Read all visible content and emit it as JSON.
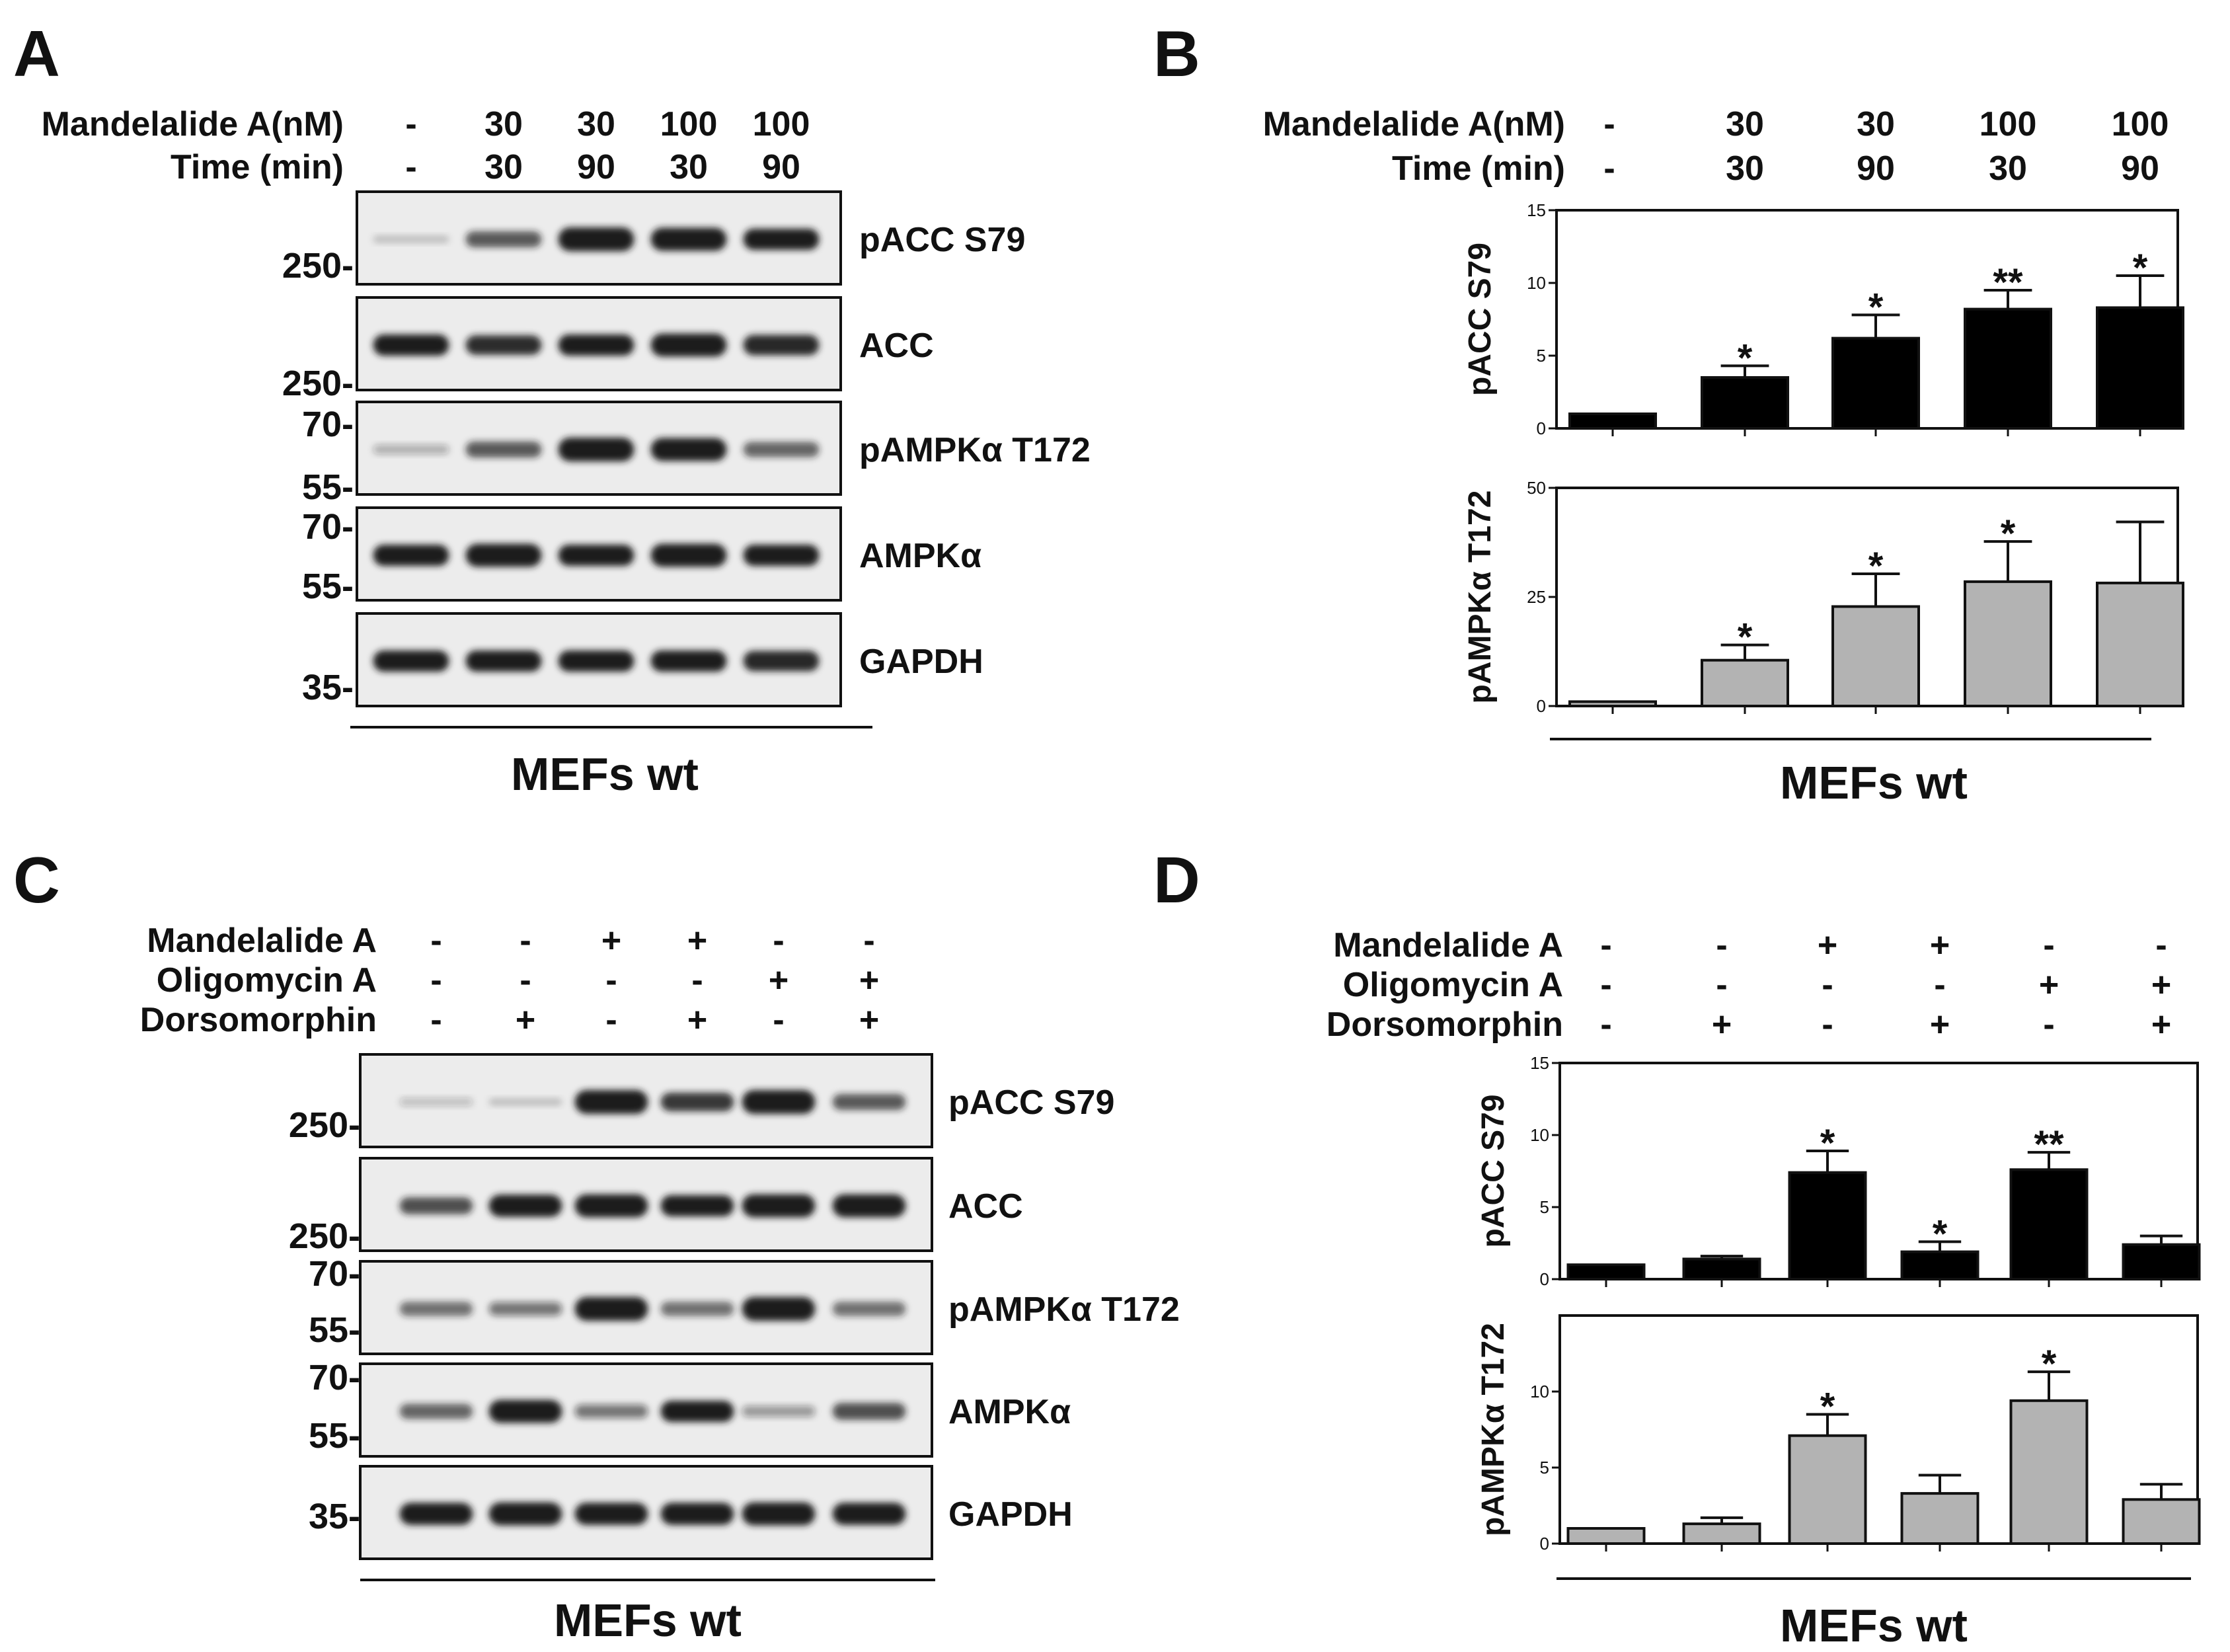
{
  "panels": {
    "A": {
      "letter": "A",
      "conditions": {
        "rows": [
          {
            "label": "Mandelalide A(nM)",
            "values": [
              "-",
              "30",
              "30",
              "100",
              "100"
            ]
          },
          {
            "label": "Time (min)",
            "values": [
              "-",
              "30",
              "90",
              "30",
              "90"
            ]
          }
        ]
      },
      "markers": [
        "250-",
        "250-",
        "70-",
        "55-",
        "70-",
        "55-",
        "35-"
      ],
      "bands": [
        "pACC S79",
        "ACC",
        "pAMPKα  T172",
        "AMPKα",
        "GAPDH"
      ],
      "cell_label": "MEFs wt"
    },
    "B": {
      "letter": "B",
      "conditions": {
        "rows": [
          {
            "label": "Mandelalide A(nM)",
            "values": [
              "-",
              "30",
              "30",
              "100",
              "100"
            ]
          },
          {
            "label": "Time (min)",
            "values": [
              "-",
              "30",
              "90",
              "30",
              "90"
            ]
          }
        ]
      },
      "cell_label": "MEFs wt"
    },
    "C": {
      "letter": "C",
      "conditions": {
        "rows": [
          {
            "label": "Mandelalide A",
            "values": [
              "-",
              "-",
              "+",
              "+",
              "-",
              "-"
            ]
          },
          {
            "label": "Oligomycin A",
            "values": [
              "-",
              "-",
              "-",
              "-",
              "+",
              "+"
            ]
          },
          {
            "label": "Dorsomorphin",
            "values": [
              "-",
              "+",
              "-",
              "+",
              "-",
              "+"
            ]
          }
        ]
      },
      "markers": [
        "250-",
        "250-",
        "70-",
        "55-",
        "70-",
        "55-",
        "35-"
      ],
      "bands": [
        "pACC S79",
        "ACC",
        "pAMPKα  T172",
        "AMPKα",
        "GAPDH"
      ],
      "cell_label": "MEFs wt"
    },
    "D": {
      "letter": "D",
      "conditions": {
        "rows": [
          {
            "label": "Mandelalide A",
            "values": [
              "-",
              "-",
              "+",
              "+",
              "-",
              "-"
            ]
          },
          {
            "label": "Oligomycin A",
            "values": [
              "-",
              "-",
              "-",
              "-",
              "+",
              "+"
            ]
          },
          {
            "label": "Dorsomorphin",
            "values": [
              "-",
              "+",
              "-",
              "+",
              "-",
              "+"
            ]
          }
        ]
      },
      "cell_label": "MEFs wt"
    }
  },
  "colors": {
    "black_bar": "#000000",
    "gray_bar": "#b3b3b3",
    "blot_bg": "#ececec",
    "band": "#1a1a1a"
  },
  "chart_data": [
    {
      "id": "B-pACC",
      "type": "bar",
      "ylabel": "pACC S79",
      "ylim": [
        0,
        15
      ],
      "yticks": [
        0,
        5,
        10,
        15
      ],
      "bar_color": "#000000",
      "values": [
        1.0,
        3.5,
        6.2,
        8.2,
        8.3
      ],
      "errors": [
        0.0,
        0.8,
        1.6,
        1.3,
        2.2
      ],
      "significance": [
        "",
        "*",
        "*",
        "**",
        "*"
      ]
    },
    {
      "id": "B-pAMPK",
      "type": "bar",
      "ylabel": "pAMPKα T172",
      "ylim": [
        0,
        50
      ],
      "yticks": [
        0,
        25,
        50
      ],
      "bar_color": "#b3b3b3",
      "values": [
        1.0,
        10.5,
        22.8,
        28.5,
        28.2
      ],
      "errors": [
        0.0,
        3.5,
        7.5,
        9.2,
        14.0
      ],
      "significance": [
        "",
        "*",
        "*",
        "*",
        ""
      ]
    },
    {
      "id": "D-pACC",
      "type": "bar",
      "ylabel": "pACC S79",
      "ylim": [
        0,
        15
      ],
      "yticks": [
        0,
        5,
        10,
        15
      ],
      "bar_color": "#000000",
      "values": [
        1.0,
        1.4,
        7.4,
        1.9,
        7.6,
        2.4
      ],
      "errors": [
        0.0,
        0.2,
        1.5,
        0.7,
        1.2,
        0.6
      ],
      "significance": [
        "",
        "",
        "*",
        "*",
        "**",
        ""
      ]
    },
    {
      "id": "D-pAMPK",
      "type": "bar",
      "ylabel": "pAMPKα T172",
      "ylim": [
        0,
        15
      ],
      "yticks": [
        0,
        5,
        10
      ],
      "bar_color": "#b3b3b3",
      "values": [
        1.0,
        1.3,
        7.1,
        3.3,
        9.4,
        2.9
      ],
      "errors": [
        0.0,
        0.4,
        1.4,
        1.2,
        1.9,
        1.0
      ],
      "significance": [
        "",
        "",
        "*",
        "",
        "*",
        ""
      ]
    }
  ]
}
